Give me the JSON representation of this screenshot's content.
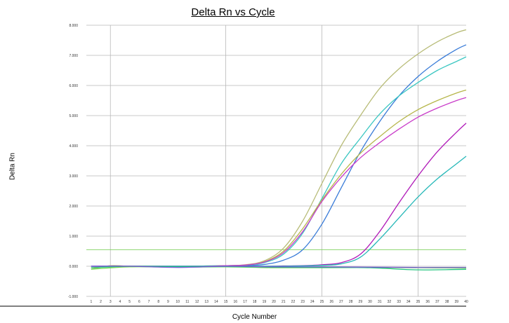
{
  "chart_data": {
    "type": "line",
    "title": "Delta Rn vs Cycle",
    "xlabel": "Cycle Number",
    "ylabel": "Delta Rn",
    "xlim": [
      0.5,
      40
    ],
    "ylim": [
      -1,
      8
    ],
    "y_ticks": [
      "-1.000",
      "0.000",
      "1.000",
      "2.000",
      "3.000",
      "4.000",
      "5.000",
      "6.000",
      "7.000",
      "8.000"
    ],
    "x_ticks": [
      "1",
      "2",
      "3",
      "4",
      "5",
      "6",
      "7",
      "8",
      "9",
      "10",
      "11",
      "12",
      "13",
      "14",
      "15",
      "16",
      "17",
      "18",
      "19",
      "20",
      "21",
      "22",
      "23",
      "24",
      "25",
      "26",
      "27",
      "28",
      "29",
      "30",
      "31",
      "32",
      "33",
      "34",
      "35",
      "36",
      "37",
      "38",
      "39",
      "40"
    ],
    "vertical_gridlines_at": [
      3,
      15,
      25,
      35
    ],
    "grid": true,
    "threshold": {
      "value": 0.55,
      "color": "#7ccf5a"
    },
    "series": [
      {
        "color": "#b8bc78",
        "x": [
          1,
          3,
          5,
          7,
          9,
          11,
          13,
          15,
          17,
          19,
          21,
          23,
          25,
          27,
          29,
          31,
          33,
          35,
          37,
          39,
          40
        ],
        "y": [
          -0.1,
          0.02,
          0.0,
          0.0,
          0.0,
          0.0,
          0.01,
          0.02,
          0.05,
          0.18,
          0.6,
          1.5,
          2.75,
          4.0,
          5.0,
          5.9,
          6.55,
          7.05,
          7.45,
          7.75,
          7.85
        ]
      },
      {
        "color": "#3a7cd8",
        "x": [
          1,
          3,
          5,
          7,
          9,
          11,
          13,
          15,
          17,
          19,
          21,
          23,
          25,
          27,
          29,
          31,
          33,
          35,
          37,
          39,
          40
        ],
        "y": [
          0.0,
          0.0,
          0.0,
          0.0,
          0.0,
          0.0,
          0.0,
          0.01,
          0.02,
          0.06,
          0.2,
          0.55,
          1.4,
          2.6,
          3.8,
          4.8,
          5.65,
          6.3,
          6.8,
          7.2,
          7.35
        ]
      },
      {
        "color": "#3cc7c2",
        "x": [
          1,
          3,
          5,
          7,
          9,
          11,
          13,
          15,
          17,
          19,
          21,
          23,
          25,
          27,
          29,
          31,
          33,
          35,
          37,
          39,
          40
        ],
        "y": [
          0.0,
          0.0,
          0.0,
          0.0,
          0.0,
          0.0,
          0.01,
          0.02,
          0.04,
          0.12,
          0.4,
          1.1,
          2.25,
          3.4,
          4.25,
          5.05,
          5.65,
          6.1,
          6.5,
          6.8,
          6.95
        ]
      },
      {
        "color": "#b6b64a",
        "x": [
          1,
          3,
          5,
          7,
          9,
          11,
          13,
          15,
          17,
          19,
          21,
          23,
          25,
          27,
          29,
          31,
          33,
          35,
          37,
          39,
          40
        ],
        "y": [
          -0.05,
          0.0,
          0.0,
          0.0,
          0.0,
          0.0,
          0.0,
          0.02,
          0.04,
          0.15,
          0.5,
          1.25,
          2.2,
          3.05,
          3.75,
          4.3,
          4.8,
          5.2,
          5.5,
          5.75,
          5.85
        ]
      },
      {
        "color": "#c93cc9",
        "x": [
          1,
          3,
          5,
          7,
          9,
          11,
          13,
          15,
          17,
          19,
          21,
          23,
          25,
          27,
          29,
          31,
          33,
          35,
          37,
          39,
          40
        ],
        "y": [
          0.0,
          0.0,
          0.0,
          0.0,
          0.0,
          0.0,
          0.0,
          0.02,
          0.04,
          0.14,
          0.45,
          1.15,
          2.15,
          2.95,
          3.6,
          4.1,
          4.55,
          4.95,
          5.25,
          5.5,
          5.6
        ]
      },
      {
        "color": "#b01ab8",
        "x": [
          1,
          3,
          5,
          7,
          9,
          11,
          13,
          15,
          17,
          19,
          21,
          23,
          25,
          27,
          29,
          31,
          33,
          35,
          37,
          39,
          40
        ],
        "y": [
          0.0,
          0.0,
          0.0,
          0.0,
          0.0,
          0.0,
          0.0,
          0.0,
          0.0,
          0.0,
          0.01,
          0.02,
          0.05,
          0.12,
          0.4,
          1.15,
          2.1,
          3.0,
          3.8,
          4.45,
          4.75
        ]
      },
      {
        "color": "#26b8b8",
        "x": [
          1,
          3,
          5,
          7,
          9,
          11,
          13,
          15,
          17,
          19,
          21,
          23,
          25,
          27,
          29,
          31,
          33,
          35,
          37,
          39,
          40
        ],
        "y": [
          0.0,
          0.0,
          0.0,
          0.0,
          0.0,
          0.0,
          0.0,
          0.0,
          0.0,
          0.0,
          0.0,
          0.01,
          0.03,
          0.08,
          0.3,
          0.9,
          1.6,
          2.3,
          2.9,
          3.4,
          3.65
        ]
      },
      {
        "color": "#6fd84c",
        "x": [
          1,
          5,
          10,
          15,
          20,
          25,
          30,
          35,
          40
        ],
        "y": [
          -0.1,
          -0.02,
          -0.03,
          -0.02,
          -0.05,
          -0.05,
          -0.04,
          -0.05,
          -0.06
        ]
      },
      {
        "color": "#1fc47c",
        "x": [
          1,
          5,
          10,
          15,
          20,
          25,
          30,
          35,
          40
        ],
        "y": [
          -0.05,
          0.0,
          -0.02,
          -0.01,
          -0.03,
          -0.04,
          -0.05,
          -0.12,
          -0.1
        ]
      },
      {
        "color": "#7b5ad6",
        "x": [
          1,
          5,
          10,
          15,
          20,
          25,
          30,
          35,
          40
        ],
        "y": [
          0.0,
          0.0,
          -0.04,
          0.0,
          -0.02,
          -0.02,
          -0.03,
          -0.04,
          -0.04
        ]
      }
    ]
  }
}
